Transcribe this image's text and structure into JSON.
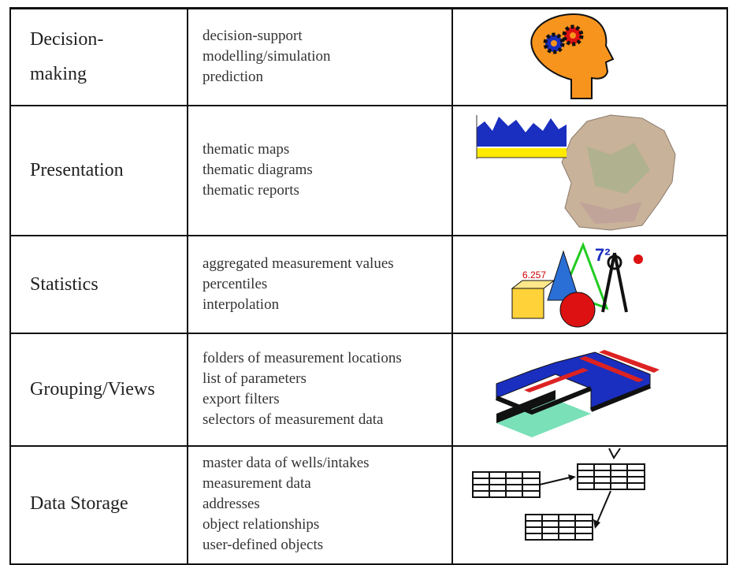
{
  "table": {
    "rows": [
      {
        "category": "Decision-making",
        "items": [
          "decision-support",
          "modelling/simulation",
          "prediction"
        ]
      },
      {
        "category": "Presentation",
        "items": [
          "thematic maps",
          "thematic diagrams",
          "thematic reports"
        ]
      },
      {
        "category": "Statistics",
        "items": [
          "aggregated measurement values",
          "percentiles",
          "interpolation"
        ]
      },
      {
        "category": "Grouping/Views",
        "items": [
          "folders of measurement locations",
          "list of parameters",
          "export filters",
          "selectors of measurement data"
        ]
      },
      {
        "category": "Data Storage",
        "items": [
          "master data of wells/intakes",
          "measurement data",
          "addresses",
          "object relationships",
          "user-defined objects"
        ]
      }
    ]
  }
}
